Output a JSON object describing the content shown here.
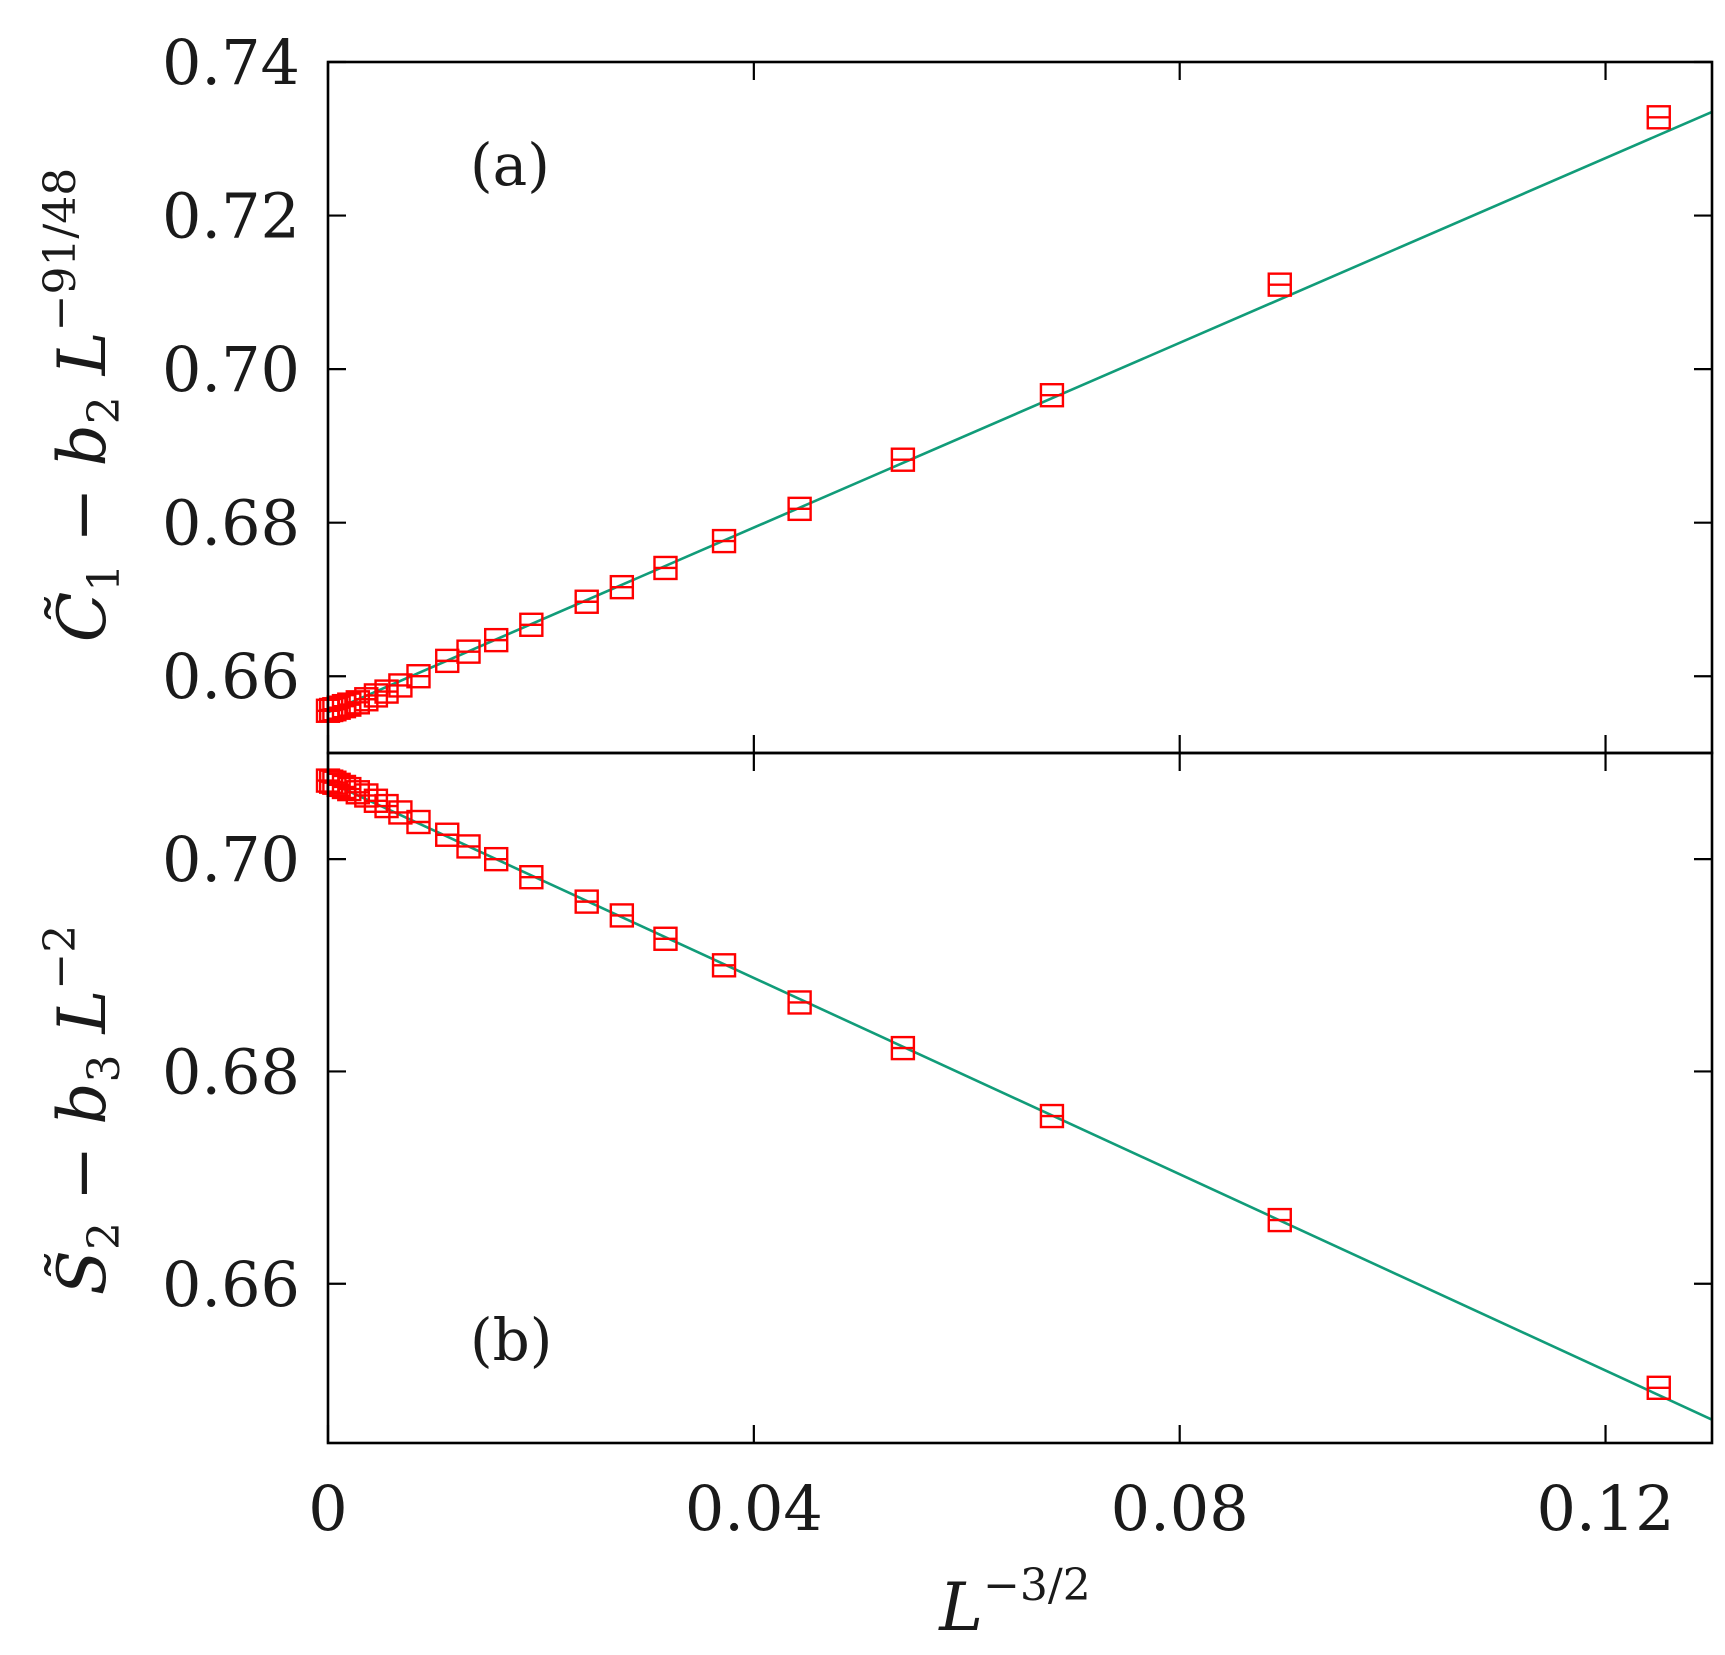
{
  "chart_data": [
    {
      "type": "scatter",
      "panel_label": "(a)",
      "ylabel": "C̃₁ − b₂ L^{−91/48}",
      "xlim": [
        0,
        0.13
      ],
      "ylim": [
        0.65,
        0.74
      ],
      "yticks": [
        "0.66",
        "0.68",
        "0.70",
        "0.72",
        "0.74"
      ],
      "grid": false,
      "marker": "open-square",
      "colors": {
        "points": "#ff0000",
        "fit": "#119c79"
      },
      "series": [
        {
          "points": [
            [
              0.0,
              0.6555
            ],
            [
              0.0003,
              0.6556
            ],
            [
              0.0006,
              0.6557
            ],
            [
              0.001,
              0.6559
            ],
            [
              0.0015,
              0.6561
            ],
            [
              0.002,
              0.6563
            ],
            [
              0.0028,
              0.6566
            ],
            [
              0.0036,
              0.657
            ],
            [
              0.0045,
              0.6575
            ],
            [
              0.0055,
              0.658
            ],
            [
              0.0068,
              0.6588
            ],
            [
              0.0085,
              0.66
            ],
            [
              0.0112,
              0.662
            ],
            [
              0.0132,
              0.6632
            ],
            [
              0.0158,
              0.6647
            ],
            [
              0.0191,
              0.6667
            ],
            [
              0.0243,
              0.6697
            ],
            [
              0.0276,
              0.6716
            ],
            [
              0.0317,
              0.6741
            ],
            [
              0.0372,
              0.6776
            ],
            [
              0.0443,
              0.6818
            ],
            [
              0.054,
              0.6882
            ],
            [
              0.068,
              0.6966
            ],
            [
              0.0894,
              0.711
            ],
            [
              0.125,
              0.7328
            ]
          ]
        }
      ],
      "fit_line": {
        "x": [
          0,
          0.13
        ],
        "y": [
          0.6553,
          0.7335
        ]
      }
    },
    {
      "type": "scatter",
      "panel_label": "(b)",
      "ylabel": "S̃₂ − b₃ L^{−2}",
      "xlabel": "L^{−3/2}",
      "xlim": [
        0,
        0.13
      ],
      "ylim": [
        0.645,
        0.71
      ],
      "xticks": [
        "0",
        "0.04",
        "0.08",
        "0.12"
      ],
      "yticks": [
        "0.66",
        "0.68",
        "0.70"
      ],
      "grid": false,
      "marker": "open-square",
      "colors": {
        "points": "#ff0000",
        "fit": "#119c79"
      },
      "series": [
        {
          "points": [
            [
              0.0,
              0.7074
            ],
            [
              0.0003,
              0.7073
            ],
            [
              0.0006,
              0.7072
            ],
            [
              0.001,
              0.707
            ],
            [
              0.0015,
              0.7068
            ],
            [
              0.002,
              0.7066
            ],
            [
              0.0028,
              0.7063
            ],
            [
              0.0036,
              0.706
            ],
            [
              0.0045,
              0.7055
            ],
            [
              0.0055,
              0.705
            ],
            [
              0.0068,
              0.7044
            ],
            [
              0.0085,
              0.7035
            ],
            [
              0.0112,
              0.7023
            ],
            [
              0.0132,
              0.7012
            ],
            [
              0.0158,
              0.7
            ],
            [
              0.0191,
              0.6983
            ],
            [
              0.0243,
              0.696
            ],
            [
              0.0276,
              0.6947
            ],
            [
              0.0317,
              0.6925
            ],
            [
              0.0372,
              0.69
            ],
            [
              0.0443,
              0.6865
            ],
            [
              0.054,
              0.6822
            ],
            [
              0.068,
              0.6758
            ],
            [
              0.0894,
              0.666
            ],
            [
              0.125,
              0.6502
            ]
          ]
        }
      ],
      "fit_line": {
        "x": [
          0,
          0.13
        ],
        "y": [
          0.7073,
          0.6472
        ]
      }
    }
  ]
}
